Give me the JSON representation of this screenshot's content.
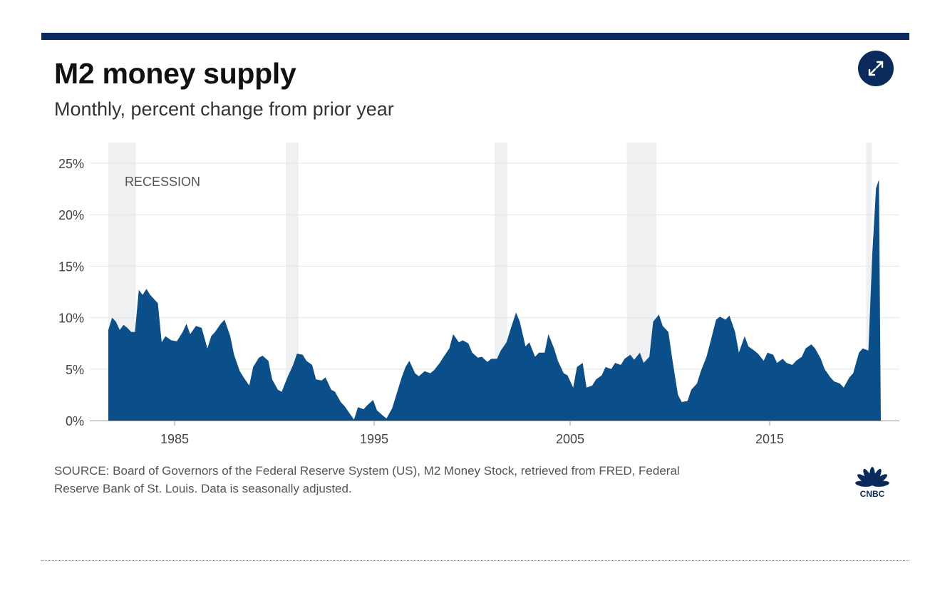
{
  "header": {
    "title": "M2 money supply",
    "subtitle": "Monthly, percent change from prior year",
    "expand_icon": "expand-arrows-icon"
  },
  "chart_data": {
    "type": "area",
    "title": "M2 money supply",
    "subtitle": "Monthly, percent change from prior year",
    "xlabel": "",
    "ylabel": "",
    "x_range": [
      1981.5,
      2020.9
    ],
    "ylim": [
      0,
      25
    ],
    "y_ticks": [
      0,
      5,
      10,
      15,
      20,
      25
    ],
    "y_tick_labels": [
      "0%",
      "5%",
      "10%",
      "15%",
      "20%",
      "25%"
    ],
    "x_ticks": [
      1985,
      1995,
      2005,
      2015
    ],
    "x_tick_labels": [
      "1985",
      "1995",
      "2005",
      "2015"
    ],
    "grid": true,
    "color": "#0b4f8a",
    "recession_color": "#eef0f2",
    "recession_label": "RECESSION",
    "recessions": [
      [
        1981.5,
        1982.9
      ],
      [
        1990.55,
        1991.2
      ],
      [
        2001.2,
        2001.85
      ],
      [
        2007.95,
        2009.45
      ],
      [
        2020.15,
        2020.45
      ]
    ],
    "series": [
      {
        "points": [
          [
            1981.5,
            8.8
          ],
          [
            1981.7,
            10.0
          ],
          [
            1981.9,
            9.6
          ],
          [
            1982.1,
            8.8
          ],
          [
            1982.3,
            9.3
          ],
          [
            1982.5,
            9.0
          ],
          [
            1982.7,
            8.6
          ],
          [
            1982.9,
            8.6
          ],
          [
            1983.1,
            12.7
          ],
          [
            1983.3,
            12.2
          ],
          [
            1983.5,
            12.8
          ],
          [
            1983.7,
            12.2
          ],
          [
            1983.9,
            11.8
          ],
          [
            1984.1,
            11.4
          ],
          [
            1984.3,
            7.6
          ],
          [
            1984.5,
            8.2
          ],
          [
            1984.8,
            7.8
          ],
          [
            1985.1,
            7.7
          ],
          [
            1985.4,
            8.6
          ],
          [
            1985.6,
            9.4
          ],
          [
            1985.8,
            8.4
          ],
          [
            1986.1,
            9.2
          ],
          [
            1986.4,
            9.0
          ],
          [
            1986.7,
            7.0
          ],
          [
            1986.9,
            8.2
          ],
          [
            1987.1,
            8.6
          ],
          [
            1987.4,
            9.4
          ],
          [
            1987.6,
            9.8
          ],
          [
            1987.9,
            8.2
          ],
          [
            1988.1,
            6.4
          ],
          [
            1988.4,
            4.8
          ],
          [
            1988.6,
            4.2
          ],
          [
            1988.9,
            3.4
          ],
          [
            1989.1,
            5.2
          ],
          [
            1989.4,
            6.1
          ],
          [
            1989.6,
            6.3
          ],
          [
            1989.9,
            5.8
          ],
          [
            1990.1,
            4.0
          ],
          [
            1990.4,
            3.0
          ],
          [
            1990.6,
            2.8
          ],
          [
            1990.9,
            4.2
          ],
          [
            1991.2,
            5.4
          ],
          [
            1991.4,
            6.5
          ],
          [
            1991.7,
            6.4
          ],
          [
            1991.9,
            5.8
          ],
          [
            1992.2,
            5.4
          ],
          [
            1992.4,
            4.0
          ],
          [
            1992.7,
            3.9
          ],
          [
            1992.9,
            4.2
          ],
          [
            1993.2,
            3.0
          ],
          [
            1993.4,
            2.8
          ],
          [
            1993.7,
            1.8
          ],
          [
            1993.9,
            1.4
          ],
          [
            1994.2,
            0.6
          ],
          [
            1994.4,
            0.1
          ],
          [
            1994.6,
            1.3
          ],
          [
            1994.9,
            1.1
          ],
          [
            1995.1,
            1.5
          ],
          [
            1995.4,
            2.0
          ],
          [
            1995.6,
            1.0
          ],
          [
            1995.9,
            0.5
          ],
          [
            1996.1,
            0.2
          ],
          [
            1996.4,
            1.2
          ],
          [
            1996.7,
            3.0
          ],
          [
            1996.9,
            4.2
          ],
          [
            1997.1,
            5.2
          ],
          [
            1997.3,
            5.8
          ],
          [
            1997.6,
            4.6
          ],
          [
            1997.8,
            4.3
          ],
          [
            1998.1,
            4.8
          ],
          [
            1998.4,
            4.6
          ],
          [
            1998.6,
            4.9
          ],
          [
            1998.9,
            5.6
          ],
          [
            1999.1,
            6.2
          ],
          [
            1999.4,
            7.0
          ],
          [
            1999.6,
            8.4
          ],
          [
            1999.9,
            7.6
          ],
          [
            2000.1,
            7.8
          ],
          [
            2000.4,
            7.5
          ],
          [
            2000.6,
            6.6
          ],
          [
            2000.9,
            6.1
          ],
          [
            2001.1,
            6.2
          ],
          [
            2001.4,
            5.7
          ],
          [
            2001.6,
            6.0
          ],
          [
            2001.9,
            6.0
          ],
          [
            2002.1,
            6.8
          ],
          [
            2002.4,
            7.6
          ],
          [
            2002.6,
            8.8
          ],
          [
            2002.9,
            10.5
          ],
          [
            2003.1,
            9.6
          ],
          [
            2003.4,
            7.2
          ],
          [
            2003.6,
            7.6
          ],
          [
            2003.9,
            6.2
          ],
          [
            2004.1,
            6.6
          ],
          [
            2004.4,
            6.6
          ],
          [
            2004.6,
            8.4
          ],
          [
            2004.9,
            7.0
          ],
          [
            2005.1,
            5.8
          ],
          [
            2005.4,
            4.6
          ],
          [
            2005.6,
            4.4
          ],
          [
            2005.9,
            3.2
          ],
          [
            2006.1,
            5.2
          ],
          [
            2006.4,
            5.6
          ],
          [
            2006.6,
            3.2
          ],
          [
            2006.9,
            3.4
          ],
          [
            2007.1,
            4.0
          ],
          [
            2007.4,
            4.4
          ],
          [
            2007.6,
            5.2
          ],
          [
            2007.9,
            5.0
          ],
          [
            2008.1,
            5.6
          ],
          [
            2008.4,
            5.4
          ],
          [
            2008.6,
            6.0
          ],
          [
            2008.9,
            6.4
          ],
          [
            2009.1,
            5.9
          ],
          [
            2009.4,
            6.6
          ],
          [
            2009.6,
            5.6
          ],
          [
            2009.9,
            6.2
          ],
          [
            2010.1,
            9.6
          ],
          [
            2010.4,
            10.3
          ],
          [
            2010.6,
            9.2
          ],
          [
            2010.9,
            8.6
          ],
          [
            2011.1,
            6.0
          ],
          [
            2011.4,
            2.5
          ],
          [
            2011.6,
            1.8
          ],
          [
            2011.9,
            1.9
          ],
          [
            2012.1,
            3.0
          ],
          [
            2012.4,
            3.6
          ],
          [
            2012.6,
            4.8
          ],
          [
            2012.9,
            6.2
          ],
          [
            2013.1,
            7.6
          ],
          [
            2013.4,
            9.8
          ],
          [
            2013.6,
            10.1
          ],
          [
            2013.9,
            9.8
          ],
          [
            2014.1,
            10.2
          ],
          [
            2014.4,
            8.6
          ],
          [
            2014.6,
            6.6
          ],
          [
            2014.9,
            8.2
          ],
          [
            2015.1,
            7.2
          ],
          [
            2015.4,
            6.8
          ],
          [
            2015.6,
            6.5
          ],
          [
            2015.9,
            5.8
          ],
          [
            2016.1,
            6.6
          ],
          [
            2016.4,
            6.4
          ],
          [
            2016.6,
            5.6
          ],
          [
            2016.9,
            6.0
          ],
          [
            2017.1,
            5.6
          ],
          [
            2017.4,
            5.4
          ],
          [
            2017.6,
            5.8
          ],
          [
            2017.9,
            6.2
          ],
          [
            2018.1,
            7.0
          ],
          [
            2018.4,
            7.4
          ],
          [
            2018.6,
            7.0
          ],
          [
            2018.9,
            6.0
          ],
          [
            2019.1,
            5.0
          ],
          [
            2019.4,
            4.2
          ],
          [
            2019.6,
            3.8
          ],
          [
            2019.9,
            3.6
          ],
          [
            2020.1,
            3.2
          ],
          [
            2020.4,
            4.2
          ],
          [
            2020.6,
            4.6
          ],
          [
            2020.9,
            6.6
          ],
          [
            2021.1,
            7.0
          ],
          [
            2021.4,
            6.8
          ],
          [
            2021.6,
            16.2
          ],
          [
            2021.8,
            22.6
          ],
          [
            2021.95,
            23.4
          ],
          [
            2022.05,
            0
          ]
        ]
      }
    ]
  },
  "footer": {
    "source_line1": "SOURCE: Board of Governors of the Federal Reserve System (US), M2 Money Stock, retrieved from FRED, Federal",
    "source_line2": "Reserve Bank of St. Louis. Data is seasonally adjusted.",
    "logo_text": "CNBC",
    "logo_icon": "cnbc-peacock-icon"
  }
}
